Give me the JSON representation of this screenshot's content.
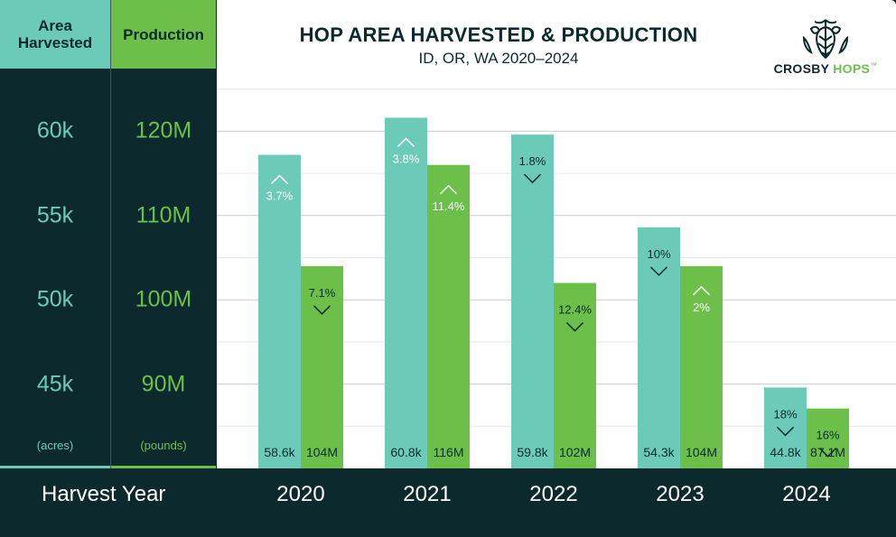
{
  "chart_data": {
    "type": "bar",
    "title": "HOP AREA HARVESTED & PRODUCTION",
    "subtitle": "ID, OR, WA 2020–2024",
    "xlabel": "Harvest Year",
    "categories": [
      "2020",
      "2021",
      "2022",
      "2023",
      "2024"
    ],
    "series": [
      {
        "name": "Area Harvested",
        "unit": "(acres)",
        "color": "#6ccbb8",
        "axis_ticks": [
          {
            "value": 60000,
            "label": "60k"
          },
          {
            "value": 55000,
            "label": "55k"
          },
          {
            "value": 50000,
            "label": "50k"
          },
          {
            "value": 45000,
            "label": "45k"
          }
        ],
        "ylim": [
          40000,
          65000
        ],
        "values": [
          58600,
          60800,
          59800,
          54300,
          44800
        ],
        "value_labels": [
          "58.6k",
          "60.8k",
          "59.8k",
          "54.3k",
          "44.8k"
        ],
        "change_labels": [
          "3.7%",
          "3.8%",
          "1.8%",
          "10%",
          "18%"
        ],
        "change_directions": [
          "up",
          "up",
          "down",
          "down",
          "down"
        ]
      },
      {
        "name": "Production",
        "unit": "(pounds)",
        "color": "#6cc04a",
        "axis_ticks": [
          {
            "value": 120,
            "label": "120M"
          },
          {
            "value": 110,
            "label": "110M"
          },
          {
            "value": 100,
            "label": "100M"
          },
          {
            "value": 90,
            "label": "90M"
          }
        ],
        "ylim": [
          80,
          130
        ],
        "values": [
          104,
          116,
          102,
          104,
          87.1
        ],
        "value_labels": [
          "104M",
          "116M",
          "102M",
          "104M",
          "87.1M"
        ],
        "change_labels": [
          "7.1%",
          "11.4%",
          "12.4%",
          "2%",
          "16%"
        ],
        "change_directions": [
          "down",
          "up",
          "down",
          "up",
          "down"
        ]
      }
    ],
    "grid": true,
    "legend": "left"
  },
  "brand": {
    "logo_part1": "CROSBY",
    "logo_part2": "HOPS",
    "logo_icon": "hop-cone-icon",
    "trademark": "™"
  },
  "colors": {
    "background": "#0c2a2e",
    "area": "#6ccbb8",
    "production": "#6cc04a"
  }
}
